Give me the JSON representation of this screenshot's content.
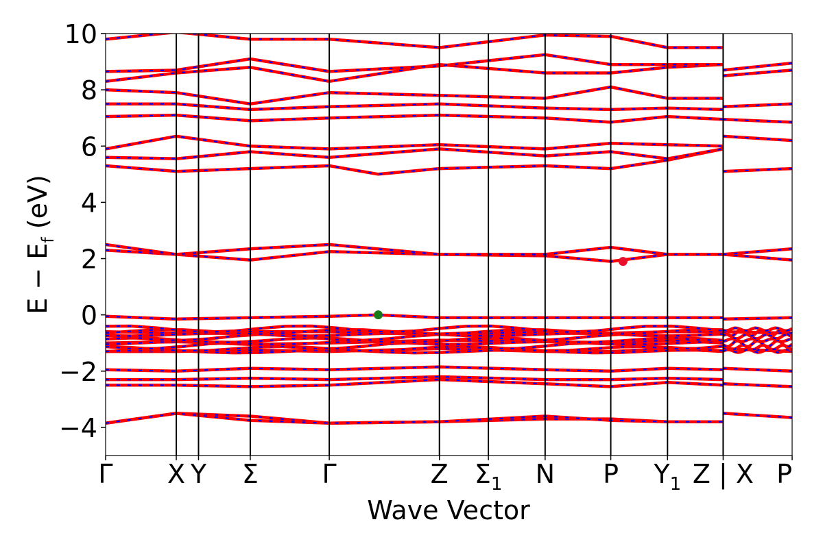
{
  "chart_data": {
    "type": "line",
    "xlabel": "Wave Vector",
    "ylabel_main": "E − E",
    "ylabel_sub": "f",
    "ylabel_unit": " (eV)",
    "ylim": [
      -5,
      10
    ],
    "xlim": [
      0,
      12.34
    ],
    "yticks": [
      -4,
      -2,
      0,
      2,
      4,
      6,
      8,
      10
    ],
    "ytick_labels": [
      "−4",
      "−2",
      "0",
      "2",
      "4",
      "6",
      "8",
      "10"
    ],
    "kpoints": [
      {
        "label": "Γ",
        "sub": "",
        "x": 0.0
      },
      {
        "label": "X",
        "sub": "",
        "x": 1.27
      },
      {
        "label": "Y",
        "sub": "",
        "x": 1.67
      },
      {
        "label": "Σ",
        "sub": "",
        "x": 2.6
      },
      {
        "label": "Γ",
        "sub": "",
        "x": 4.02
      },
      {
        "label": "Z",
        "sub": "",
        "x": 6.0
      },
      {
        "label": "Σ",
        "sub": "1",
        "x": 6.88
      },
      {
        "label": "N",
        "sub": "",
        "x": 7.9
      },
      {
        "label": "P",
        "sub": "",
        "x": 9.08
      },
      {
        "label": "Y",
        "sub": "1",
        "x": 10.1
      },
      {
        "label": "Z | X",
        "sub": "",
        "x": 11.1
      },
      {
        "label": "P",
        "sub": "",
        "x": 12.34
      }
    ],
    "segment_break_x": 11.1,
    "vbm": {
      "x": 4.9,
      "y": 0.0,
      "color": "#1a7a1a"
    },
    "cbm": {
      "x": 9.3,
      "y": 1.9,
      "color": "#e8102a"
    },
    "colors": {
      "band": "#ff0000",
      "band_overlay": "#0000ff",
      "vline": "#000000"
    },
    "bands": [
      {
        "x": [
          0,
          1.27,
          2.6,
          4.02,
          6.0,
          7.9,
          9.08,
          10.1,
          11.1
        ],
        "y": [
          -3.85,
          -3.5,
          -3.6,
          -3.85,
          -3.8,
          -3.7,
          -3.7,
          -3.8,
          -3.8
        ]
      },
      {
        "x": [
          0,
          1.27,
          2.6,
          4.02,
          6.0,
          7.9,
          9.08,
          10.1,
          11.1
        ],
        "y": [
          -3.85,
          -3.5,
          -3.75,
          -3.85,
          -3.8,
          -3.6,
          -3.75,
          -3.8,
          -3.8
        ]
      },
      {
        "x": [
          0,
          1.27,
          2.6,
          4.02,
          6.0,
          7.9,
          9.08,
          10.1,
          11.1
        ],
        "y": [
          -2.5,
          -2.5,
          -2.55,
          -2.5,
          -2.3,
          -2.45,
          -2.55,
          -2.4,
          -2.5
        ]
      },
      {
        "x": [
          0,
          1.27,
          2.6,
          4.02,
          6.0,
          7.9,
          9.08,
          10.1,
          11.1
        ],
        "y": [
          -2.3,
          -2.3,
          -2.25,
          -2.3,
          -2.2,
          -2.3,
          -2.3,
          -2.25,
          -2.3
        ]
      },
      {
        "x": [
          0,
          1.27,
          2.6,
          4.02,
          6.0,
          7.9,
          9.08,
          10.1,
          11.1
        ],
        "y": [
          -1.95,
          -2.0,
          -1.9,
          -1.95,
          -1.85,
          -1.95,
          -2.0,
          -1.9,
          -1.95
        ]
      },
      {
        "x": [
          0,
          1.27,
          2.6,
          4.02,
          6.0,
          7.9,
          9.08,
          10.1,
          11.1
        ],
        "y": [
          -1.3,
          -1.3,
          -1.25,
          -1.3,
          -1.2,
          -1.3,
          -1.3,
          -1.2,
          -1.3
        ]
      },
      {
        "x": [
          0,
          1.27,
          2.6,
          4.02,
          6.0,
          7.9,
          9.08,
          10.1,
          11.1
        ],
        "y": [
          -1.0,
          -0.95,
          -1.05,
          -1.0,
          -0.9,
          -0.95,
          -1.0,
          -0.9,
          -1.0
        ]
      },
      {
        "x": [
          0,
          1.27,
          2.6,
          4.02,
          6.0,
          7.9,
          9.08,
          10.1,
          11.1
        ],
        "y": [
          -0.6,
          -0.65,
          -0.6,
          -0.6,
          -0.7,
          -0.6,
          -0.65,
          -0.6,
          -0.6
        ]
      },
      {
        "x": [
          0,
          1.27,
          2.6,
          4.02,
          4.9,
          6.0,
          7.9,
          9.08,
          10.1,
          11.1
        ],
        "y": [
          -0.05,
          -0.15,
          -0.1,
          -0.05,
          0.0,
          -0.1,
          -0.1,
          -0.1,
          -0.1,
          -0.1
        ]
      },
      {
        "x": [
          0,
          1.27,
          2.6,
          4.02,
          6.0,
          7.9,
          9.08,
          10.1,
          11.1
        ],
        "y": [
          2.3,
          2.15,
          1.95,
          2.25,
          2.15,
          2.1,
          1.9,
          2.15,
          2.15
        ]
      },
      {
        "x": [
          0,
          1.27,
          2.6,
          4.02,
          6.0,
          7.9,
          9.08,
          10.1,
          11.1
        ],
        "y": [
          2.5,
          2.15,
          2.35,
          2.5,
          2.15,
          2.15,
          2.4,
          2.15,
          2.15
        ]
      },
      {
        "x": [
          0,
          1.27,
          2.6,
          4.02,
          4.9,
          6.0,
          7.9,
          9.08,
          10.1,
          11.1
        ],
        "y": [
          5.3,
          5.1,
          5.2,
          5.3,
          5.0,
          5.2,
          5.3,
          5.2,
          5.5,
          5.9
        ]
      },
      {
        "x": [
          0,
          1.27,
          2.6,
          4.02,
          6.0,
          7.9,
          9.08,
          10.1,
          11.1
        ],
        "y": [
          5.6,
          5.55,
          5.8,
          5.6,
          5.9,
          5.65,
          5.8,
          5.55,
          5.9
        ]
      },
      {
        "x": [
          0,
          1.27,
          2.6,
          4.02,
          6.0,
          7.9,
          9.08,
          10.1,
          11.1
        ],
        "y": [
          5.9,
          6.35,
          6.0,
          5.9,
          6.05,
          5.9,
          6.1,
          6.05,
          6.0
        ]
      },
      {
        "x": [
          0,
          1.27,
          2.6,
          4.02,
          6.0,
          7.9,
          9.08,
          10.1,
          11.1
        ],
        "y": [
          7.05,
          7.1,
          6.9,
          7.0,
          7.1,
          7.0,
          6.85,
          7.05,
          6.95
        ]
      },
      {
        "x": [
          0,
          1.27,
          2.6,
          4.02,
          6.0,
          7.9,
          9.08,
          10.1,
          11.1
        ],
        "y": [
          7.5,
          7.5,
          7.3,
          7.4,
          7.5,
          7.35,
          7.3,
          7.35,
          7.3
        ]
      },
      {
        "x": [
          0,
          1.27,
          2.6,
          4.02,
          6.0,
          7.9,
          9.08,
          10.1,
          11.1
        ],
        "y": [
          8.0,
          7.9,
          7.5,
          7.9,
          7.8,
          7.7,
          8.1,
          7.7,
          7.7
        ]
      },
      {
        "x": [
          0,
          1.27,
          2.6,
          4.02,
          6.0,
          7.9,
          9.08,
          10.1,
          11.1
        ],
        "y": [
          8.3,
          8.6,
          8.8,
          8.3,
          8.9,
          8.6,
          8.6,
          8.8,
          8.9
        ]
      },
      {
        "x": [
          0,
          1.27,
          2.6,
          4.02,
          6.0,
          7.9,
          9.08,
          10.1,
          11.1
        ],
        "y": [
          8.65,
          8.7,
          9.1,
          8.65,
          8.85,
          9.25,
          8.9,
          8.9,
          8.9
        ]
      },
      {
        "x": [
          0,
          1.27,
          2.6,
          4.02,
          6.0,
          7.9,
          9.08,
          10.1,
          11.1
        ],
        "y": [
          9.8,
          10.05,
          9.8,
          9.8,
          9.5,
          9.95,
          9.9,
          9.5,
          9.5
        ]
      },
      {
        "x": [
          11.1,
          12.34
        ],
        "y": [
          -3.5,
          -3.65
        ]
      },
      {
        "x": [
          11.1,
          12.34
        ],
        "y": [
          -2.45,
          -2.55
        ]
      },
      {
        "x": [
          11.1,
          12.34
        ],
        "y": [
          -1.9,
          -2.0
        ]
      },
      {
        "x": [
          11.1,
          12.34
        ],
        "y": [
          -1.2,
          -1.3
        ]
      },
      {
        "x": [
          11.1,
          12.34
        ],
        "y": [
          -0.6,
          -0.65
        ]
      },
      {
        "x": [
          11.1,
          12.34
        ],
        "y": [
          -0.15,
          -0.1
        ]
      },
      {
        "x": [
          11.1,
          12.34
        ],
        "y": [
          2.15,
          1.95
        ]
      },
      {
        "x": [
          11.1,
          12.34
        ],
        "y": [
          2.15,
          2.35
        ]
      },
      {
        "x": [
          11.1,
          12.34
        ],
        "y": [
          5.1,
          5.2
        ]
      },
      {
        "x": [
          11.1,
          12.34
        ],
        "y": [
          6.35,
          6.2
        ]
      },
      {
        "x": [
          11.1,
          12.34
        ],
        "y": [
          6.95,
          6.85
        ]
      },
      {
        "x": [
          11.1,
          12.34
        ],
        "y": [
          7.4,
          7.5
        ]
      },
      {
        "x": [
          11.1,
          12.34
        ],
        "y": [
          8.5,
          8.7
        ]
      },
      {
        "x": [
          11.1,
          12.34
        ],
        "y": [
          8.7,
          8.95
        ]
      }
    ],
    "band_groups": [
      {
        "x_range": [
          0,
          11.1
        ],
        "y_range": [
          -1.35,
          -0.45
        ],
        "count": 9
      },
      {
        "x_range": [
          11.1,
          12.34
        ],
        "y_range": [
          -1.35,
          -0.45
        ],
        "count": 7
      }
    ]
  }
}
